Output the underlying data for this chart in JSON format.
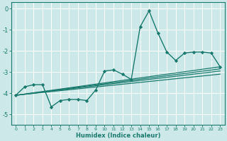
{
  "bg_color": "#cde8e8",
  "grid_color": "#ffffff",
  "line_color": "#1a7a6e",
  "marker_color": "#1a7a6e",
  "xlabel": "Humidex (Indice chaleur)",
  "xlim": [
    -0.5,
    23.5
  ],
  "ylim": [
    -5.5,
    0.3
  ],
  "yticks": [
    0,
    -1,
    -2,
    -3,
    -4,
    -5
  ],
  "xticks": [
    0,
    1,
    2,
    3,
    4,
    5,
    6,
    7,
    8,
    9,
    10,
    11,
    12,
    13,
    14,
    15,
    16,
    17,
    18,
    19,
    20,
    21,
    22,
    23
  ],
  "main_line": {
    "x": [
      0,
      1,
      2,
      3,
      4,
      5,
      6,
      7,
      8,
      9,
      10,
      11,
      12,
      13,
      14,
      15,
      16,
      17,
      18,
      19,
      20,
      21,
      22,
      23
    ],
    "y": [
      -4.1,
      -3.7,
      -3.6,
      -3.6,
      -4.65,
      -4.35,
      -4.3,
      -4.3,
      -4.35,
      -3.85,
      -2.95,
      -2.9,
      -3.1,
      -3.35,
      -0.85,
      -0.1,
      -1.15,
      -2.05,
      -2.45,
      -2.1,
      -2.05,
      -2.05,
      -2.1,
      -2.75
    ],
    "marker": "D",
    "markersize": 2.2,
    "linewidth": 1.0
  },
  "reg_lines": [
    {
      "x": [
        0,
        23
      ],
      "y": [
        -4.1,
        -2.75
      ],
      "linewidth": 0.9
    },
    {
      "x": [
        0,
        23
      ],
      "y": [
        -4.1,
        -2.85
      ],
      "linewidth": 0.9
    },
    {
      "x": [
        0,
        23
      ],
      "y": [
        -4.1,
        -2.95
      ],
      "linewidth": 0.9
    },
    {
      "x": [
        0,
        23
      ],
      "y": [
        -4.1,
        -3.1
      ],
      "linewidth": 0.9
    }
  ],
  "xlabel_fontsize": 6.0,
  "xtick_fontsize": 4.5,
  "ytick_fontsize": 6.0
}
